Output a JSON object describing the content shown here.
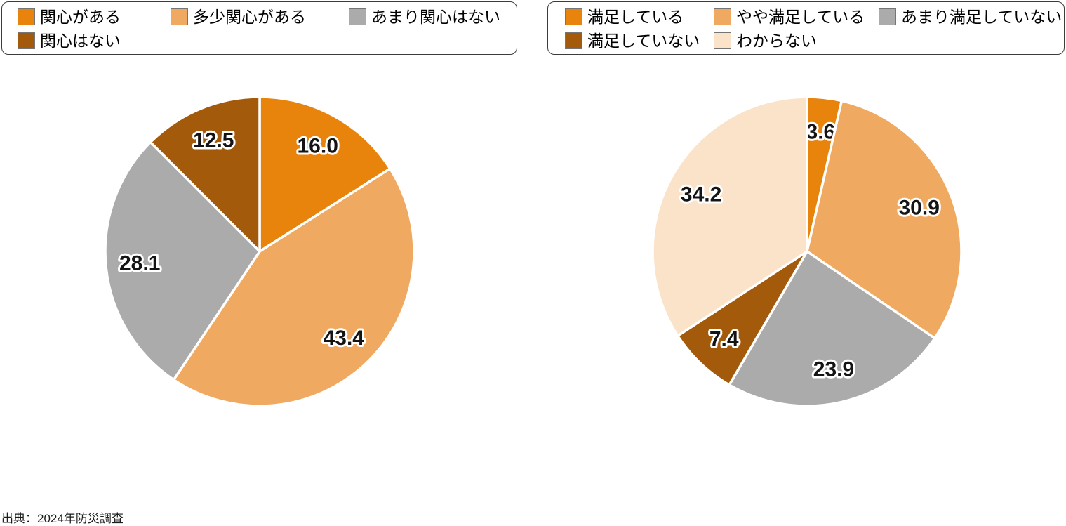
{
  "chart_data": [
    {
      "type": "pie",
      "title": "",
      "labels": [
        "関心がある",
        "多少関心がある",
        "あまり関心はない",
        "関心はない"
      ],
      "values": [
        16.0,
        43.4,
        28.1,
        12.5
      ],
      "value_labels": [
        "16.0",
        "43.4",
        "28.1",
        "12.5"
      ],
      "colors": [
        "#E8830C",
        "#F0A960",
        "#ABABAB",
        "#A35B0B"
      ],
      "start_angle": "top",
      "direction": "clockwise",
      "slice_border_color": "#FFFFFF",
      "label_text_color": "#141414",
      "label_halo_color": "#FFFFFF",
      "legend_position": "top"
    },
    {
      "type": "pie",
      "title": "",
      "labels": [
        "満足している",
        "やや満足している",
        "あまり満足していない",
        "満足していない",
        "わからない"
      ],
      "values": [
        3.6,
        30.9,
        23.9,
        7.4,
        34.2
      ],
      "value_labels": [
        "3.6",
        "30.9",
        "23.9",
        "7.4",
        "34.2"
      ],
      "colors": [
        "#E8830C",
        "#F0A960",
        "#ABABAB",
        "#A35B0B",
        "#FAE3C8"
      ],
      "start_angle": "top",
      "direction": "clockwise",
      "slice_border_color": "#FFFFFF",
      "label_text_color": "#141414",
      "label_halo_color": "#FFFFFF",
      "legend_position": "top"
    }
  ],
  "source": {
    "text": "出典：2024年防災調査"
  }
}
